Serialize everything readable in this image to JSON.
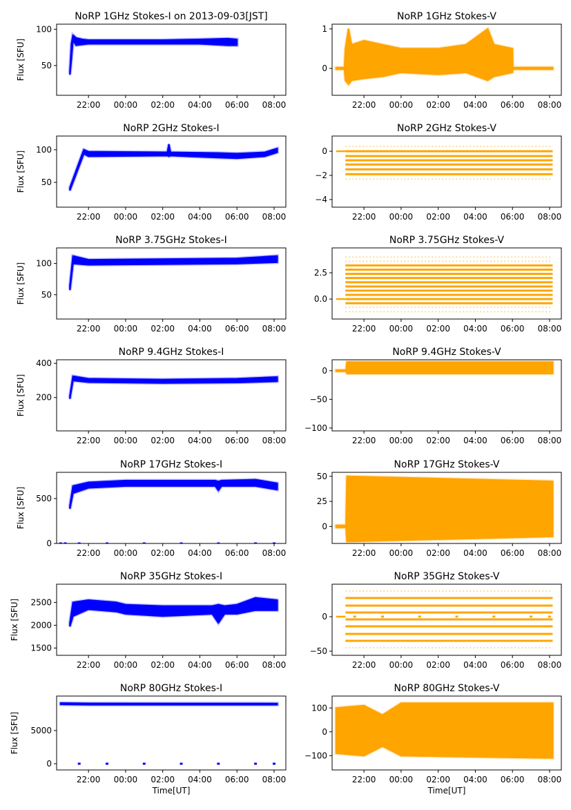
{
  "figure": {
    "xtick_labels": [
      "22:00",
      "00:00",
      "02:00",
      "04:00",
      "06:00",
      "08:00"
    ],
    "xlim": [
      "20:17",
      "08:38"
    ],
    "colors": {
      "stokes_i": "#0000ff",
      "stokes_v": "#ffa500"
    }
  },
  "chart_data": [
    {
      "type": "scatter",
      "title": "NoRP 1GHz Stokes-I on 2013-09-03[JST]",
      "ylabel": "Flux [SFU]",
      "xlabel": "",
      "ylim": [
        9,
        107
      ],
      "yticks": [
        50,
        100
      ],
      "ytick_labels": [
        "50",
        "100"
      ],
      "color": "#0000ff",
      "envelope": [
        [
          "21:00",
          38,
          42
        ],
        [
          "21:05",
          60,
          80
        ],
        [
          "21:10",
          85,
          92
        ],
        [
          "21:20",
          78,
          88
        ],
        [
          "21:40",
          79,
          86
        ],
        [
          "22:00",
          80,
          85
        ],
        [
          "00:00",
          80,
          85
        ],
        [
          "02:00",
          80,
          85
        ],
        [
          "04:00",
          80,
          86
        ],
        [
          "05:30",
          78,
          87
        ],
        [
          "06:00",
          78,
          86
        ]
      ]
    },
    {
      "type": "scatter",
      "title": "NoRP 1GHz Stokes-V",
      "ylabel": "",
      "xlabel": "",
      "ylim": [
        -0.68,
        1.12
      ],
      "yticks": [
        0,
        1
      ],
      "ytick_labels": [
        "0",
        "1"
      ],
      "color": "#ffa500",
      "envelope": [
        [
          "20:30",
          -0.02,
          0.02
        ],
        [
          "20:57",
          -0.02,
          0.02
        ],
        [
          "21:00",
          -0.3,
          0.5
        ],
        [
          "21:10",
          -0.4,
          1.0
        ],
        [
          "21:20",
          -0.3,
          0.6
        ],
        [
          "22:00",
          -0.25,
          0.7
        ],
        [
          "23:00",
          -0.2,
          0.6
        ],
        [
          "00:00",
          -0.1,
          0.5
        ],
        [
          "02:00",
          -0.15,
          0.5
        ],
        [
          "03:30",
          -0.1,
          0.6
        ],
        [
          "04:40",
          -0.3,
          1.0
        ],
        [
          "05:00",
          -0.2,
          0.6
        ],
        [
          "06:00",
          -0.1,
          0.5
        ],
        [
          "06:01",
          -0.02,
          0.02
        ],
        [
          "08:10",
          -0.02,
          0.02
        ]
      ]
    },
    {
      "type": "scatter",
      "title": "NoRP 2GHz Stokes-I",
      "ylabel": "Flux [SFU]",
      "xlabel": "",
      "ylim": [
        12,
        121
      ],
      "yticks": [
        50,
        100
      ],
      "ytick_labels": [
        "50",
        "100"
      ],
      "color": "#0000ff",
      "envelope": [
        [
          "21:00",
          38,
          42
        ],
        [
          "21:45",
          94,
          100
        ],
        [
          "22:00",
          90,
          97
        ],
        [
          "02:15",
          91,
          96
        ],
        [
          "02:20",
          90,
          108
        ],
        [
          "02:25",
          91,
          96
        ],
        [
          "05:00",
          88,
          95
        ],
        [
          "06:00",
          87,
          94
        ],
        [
          "07:30",
          90,
          96
        ],
        [
          "08:10",
          96,
          102
        ]
      ]
    },
    {
      "type": "scatter",
      "title": "NoRP 2GHz Stokes-V",
      "ylabel": "",
      "xlabel": "",
      "ylim": [
        -4.63,
        1.26
      ],
      "yticks": [
        -4,
        -2,
        0
      ],
      "ytick_labels": [
        "−4",
        "−2",
        "0"
      ],
      "color": "#ffa500",
      "baseline": [
        "20:30",
        "21:00",
        0
      ],
      "level_range": [
        "21:00",
        "08:10"
      ],
      "levels": [
        0,
        -0.4,
        -0.75,
        -1.1,
        -1.5,
        -1.9
      ],
      "sparse_levels": [
        0.4,
        -2.3
      ]
    },
    {
      "type": "scatter",
      "title": "NoRP 3.75GHz Stokes-I",
      "ylabel": "Flux [SFU]",
      "xlabel": "",
      "ylim": [
        11,
        125
      ],
      "yticks": [
        50,
        100
      ],
      "ytick_labels": [
        "50",
        "100"
      ],
      "color": "#0000ff",
      "envelope": [
        [
          "21:00",
          58,
          65
        ],
        [
          "21:10",
          100,
          112
        ],
        [
          "22:00",
          98,
          106
        ],
        [
          "06:00",
          100,
          108
        ],
        [
          "08:10",
          102,
          112
        ]
      ]
    },
    {
      "type": "scatter",
      "title": "NoRP 3.75GHz Stokes-V",
      "ylabel": "",
      "xlabel": "",
      "ylim": [
        -1.9,
        4.87
      ],
      "yticks": [
        0,
        2.5
      ],
      "ytick_labels": [
        "0.0",
        "2.5"
      ],
      "color": "#ffa500",
      "baseline": [
        "20:30",
        "21:00",
        0
      ],
      "level_range": [
        "21:00",
        "08:10"
      ],
      "levels": [
        -0.4,
        0,
        0.4,
        0.8,
        1.2,
        1.6,
        2.0,
        2.4,
        2.8,
        3.2
      ],
      "sparse_levels": [
        -1.2,
        -0.8,
        3.6,
        4.0
      ]
    },
    {
      "type": "scatter",
      "title": "NoRP 9.4GHz Stokes-I",
      "ylabel": "Flux [SFU]",
      "xlabel": "",
      "ylim": [
        5,
        421
      ],
      "yticks": [
        200,
        400
      ],
      "ytick_labels": [
        "200",
        "400"
      ],
      "color": "#0000ff",
      "envelope": [
        [
          "21:00",
          195,
          210
        ],
        [
          "21:10",
          300,
          325
        ],
        [
          "22:00",
          290,
          310
        ],
        [
          "02:00",
          285,
          305
        ],
        [
          "06:00",
          288,
          310
        ],
        [
          "08:10",
          295,
          320
        ]
      ]
    },
    {
      "type": "scatter",
      "title": "NoRP 9.4GHz Stokes-V",
      "ylabel": "",
      "xlabel": "",
      "ylim": [
        -105,
        19
      ],
      "yticks": [
        -100,
        -50,
        0
      ],
      "ytick_labels": [
        "−100",
        "−50",
        "0"
      ],
      "color": "#ffa500",
      "envelope": [
        [
          "20:30",
          -1,
          1
        ],
        [
          "21:02",
          -1,
          1
        ],
        [
          "21:05",
          -5,
          15
        ],
        [
          "08:10",
          -5,
          15
        ]
      ]
    },
    {
      "type": "scatter",
      "title": "NoRP 17GHz Stokes-I",
      "ylabel": "Flux [SFU]",
      "xlabel": "",
      "ylim": [
        0,
        792
      ],
      "yticks": [
        0,
        500
      ],
      "ytick_labels": [
        "0",
        "500"
      ],
      "color": "#0000ff",
      "envelope": [
        [
          "21:00",
          390,
          420
        ],
        [
          "21:10",
          560,
          640
        ],
        [
          "22:00",
          620,
          680
        ],
        [
          "00:00",
          640,
          700
        ],
        [
          "04:50",
          640,
          700
        ],
        [
          "05:00",
          590,
          690
        ],
        [
          "05:10",
          640,
          700
        ],
        [
          "07:00",
          640,
          710
        ],
        [
          "08:10",
          600,
          670
        ]
      ],
      "zero_markers": [
        "20:30",
        "20:45",
        "21:30",
        "23:00",
        "01:00",
        "03:00",
        "05:00",
        "07:00",
        "08:00"
      ]
    },
    {
      "type": "scatter",
      "title": "NoRP 17GHz Stokes-V",
      "ylabel": "",
      "xlabel": "",
      "ylim": [
        -17,
        54
      ],
      "yticks": [
        0,
        25,
        50
      ],
      "ytick_labels": [
        "0",
        "25",
        "50"
      ],
      "color": "#ffa500",
      "envelope": [
        [
          "20:30",
          -1,
          1
        ],
        [
          "21:02",
          -1,
          1
        ],
        [
          "21:05",
          -15,
          50
        ],
        [
          "08:10",
          -10,
          45
        ]
      ]
    },
    {
      "type": "scatter",
      "title": "NoRP 35GHz Stokes-I",
      "ylabel": "Flux [SFU]",
      "xlabel": "",
      "ylim": [
        1340,
        2900
      ],
      "yticks": [
        1500,
        2000,
        2500
      ],
      "ytick_labels": [
        "1500",
        "2000",
        "2500"
      ],
      "color": "#0000ff",
      "envelope": [
        [
          "21:00",
          1980,
          2050
        ],
        [
          "21:10",
          2200,
          2500
        ],
        [
          "22:00",
          2350,
          2550
        ],
        [
          "23:30",
          2300,
          2500
        ],
        [
          "00:00",
          2250,
          2450
        ],
        [
          "02:00",
          2200,
          2420
        ],
        [
          "04:40",
          2250,
          2420
        ],
        [
          "05:00",
          2050,
          2450
        ],
        [
          "05:20",
          2250,
          2420
        ],
        [
          "06:00",
          2250,
          2450
        ],
        [
          "07:00",
          2330,
          2600
        ],
        [
          "08:10",
          2330,
          2550
        ]
      ]
    },
    {
      "type": "scatter",
      "title": "NoRP 35GHz Stokes-V",
      "ylabel": "",
      "xlabel": "",
      "ylim": [
        -56,
        47
      ],
      "yticks": [
        -50,
        0
      ],
      "ytick_labels": [
        "−50",
        "0"
      ],
      "color": "#ffa500",
      "baseline": [
        "20:30",
        "21:00",
        0
      ],
      "level_range": [
        "21:00",
        "08:10"
      ],
      "levels": [
        27,
        16,
        6,
        -4,
        -14,
        -25,
        -35
      ],
      "sparse_levels": [
        37,
        -45
      ],
      "zero_markers": [
        "21:30",
        "23:00",
        "01:00",
        "03:00",
        "05:00",
        "07:00",
        "08:00"
      ]
    },
    {
      "type": "scatter",
      "title": "NoRP 80GHz Stokes-I",
      "ylabel": "Flux [SFU]",
      "xlabel": "Time[UT]",
      "ylim": [
        -940,
        10200
      ],
      "yticks": [
        0,
        5000
      ],
      "ytick_labels": [
        "0",
        "5000"
      ],
      "color": "#0000ff",
      "envelope": [
        [
          "20:30",
          8950,
          9150
        ],
        [
          "22:00",
          8900,
          9100
        ],
        [
          "08:10",
          8900,
          9080
        ]
      ],
      "zero_markers": [
        "21:30",
        "23:00",
        "01:00",
        "03:00",
        "05:00",
        "07:00",
        "08:00"
      ]
    },
    {
      "type": "scatter",
      "title": "NoRP 80GHz Stokes-V",
      "ylabel": "",
      "xlabel": "Time[UT]",
      "ylim": [
        -160,
        150
      ],
      "yticks": [
        -100,
        0,
        100
      ],
      "ytick_labels": [
        "−100",
        "0",
        "100"
      ],
      "color": "#ffa500",
      "envelope": [
        [
          "20:30",
          -90,
          100
        ],
        [
          "22:00",
          -100,
          110
        ],
        [
          "23:00",
          -60,
          70
        ],
        [
          "00:00",
          -100,
          120
        ],
        [
          "08:10",
          -110,
          120
        ]
      ]
    }
  ]
}
